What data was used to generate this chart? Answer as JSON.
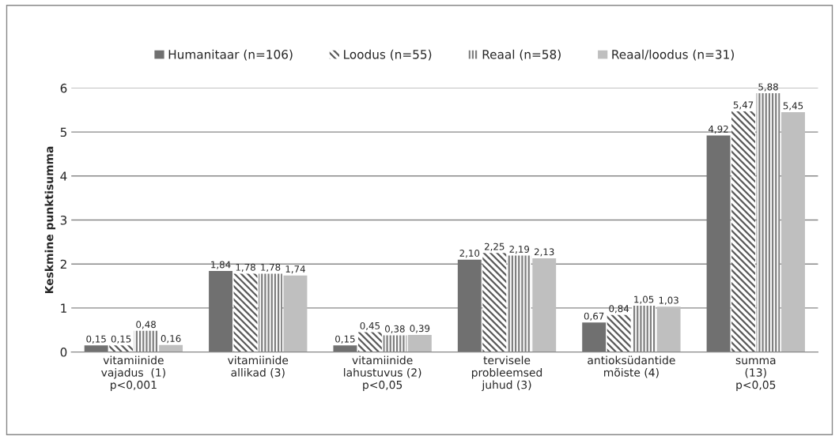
{
  "chart_data": {
    "type": "bar",
    "ylabel": "Keskmine punktisumma",
    "categories": [
      "vitamiinide\nvajadus  (1)\np<0,001",
      "vitamiinide\nallikad (3)",
      "vitamiinide\nlahustuvus (2)\np<0,05",
      "tervisele\nprobleemsed\njuhud (3)",
      "antioksüdantide\nmõiste (4)",
      "summa\n(13)\np<0,05"
    ],
    "series": [
      {
        "name": "Humanitaar (n=106)",
        "color": "#707070",
        "values": [
          0.15,
          1.84,
          0.15,
          2.1,
          0.67,
          4.92
        ],
        "value_labels": [
          "0,15",
          "1,84",
          "0,15",
          "2,10",
          "0,67",
          "4,92"
        ]
      },
      {
        "name": "Loodus (n=55)",
        "color": "#595959",
        "values": [
          0.15,
          1.78,
          0.45,
          2.25,
          0.84,
          5.47
        ],
        "value_labels": [
          "0,15",
          "1,78",
          "0,45",
          "2,25",
          "0,84",
          "5,47"
        ]
      },
      {
        "name": "Reaal (n=58)",
        "color": "#7f7f7f",
        "values": [
          0.48,
          1.78,
          0.38,
          2.19,
          1.05,
          5.88
        ],
        "value_labels": [
          "0,48",
          "1,78",
          "0,38",
          "2,19",
          "1,05",
          "5,88"
        ]
      },
      {
        "name": "Reaal/loodus (n=31)",
        "color": "#bfbfbf",
        "values": [
          0.16,
          1.74,
          0.39,
          2.13,
          1.03,
          5.45
        ],
        "value_labels": [
          "0,16",
          "1,74",
          "0,39",
          "2,13",
          "1,03",
          "5,45"
        ]
      }
    ],
    "ylim": [
      0,
      6
    ],
    "yticks": [
      0,
      1,
      2,
      3,
      4,
      5,
      6
    ],
    "grid": "y",
    "legend": "top"
  }
}
